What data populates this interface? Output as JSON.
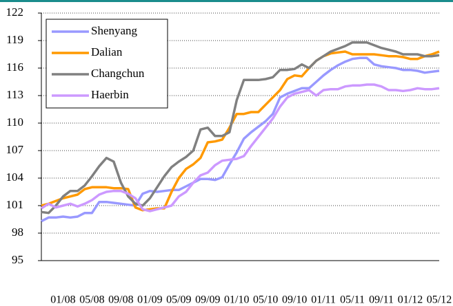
{
  "chart_data": {
    "type": "line",
    "categories": [
      null,
      null,
      null,
      "01/08",
      null,
      null,
      null,
      "05/08",
      null,
      null,
      null,
      "09/08",
      null,
      null,
      null,
      "01/09",
      null,
      null,
      null,
      "05/09",
      null,
      null,
      null,
      "09/09",
      null,
      null,
      null,
      "01/10",
      null,
      null,
      null,
      "05/10",
      null,
      null,
      null,
      "09/10",
      null,
      null,
      null,
      "01/11",
      null,
      null,
      null,
      "05/11",
      null,
      null,
      null,
      "09/11",
      null,
      null,
      null,
      "01/12",
      null,
      null,
      null,
      "05/12"
    ],
    "series": [
      {
        "name": "Shenyang",
        "color": "#9999ff",
        "values": [
          99.3,
          99.7,
          99.7,
          99.8,
          99.7,
          99.8,
          100.2,
          100.2,
          101.4,
          101.4,
          101.3,
          101.2,
          101.1,
          101.0,
          102.3,
          102.6,
          102.5,
          102.6,
          102.7,
          102.7,
          103.1,
          103.5,
          103.9,
          103.9,
          103.8,
          104.1,
          105.5,
          106.8,
          108.3,
          109.0,
          109.6,
          110.2,
          111.0,
          112.8,
          113.2,
          113.5,
          113.8,
          113.8,
          114.5,
          115.2,
          115.8,
          116.3,
          116.7,
          117.0,
          117.1,
          117.1,
          116.4,
          116.2,
          116.1,
          116.0,
          115.8,
          115.8,
          115.7,
          115.5,
          115.6,
          115.7
        ]
      },
      {
        "name": "Dalian",
        "color": "#ff9900",
        "values": [
          101.0,
          101.2,
          101.5,
          101.8,
          102.0,
          102.2,
          102.8,
          103.0,
          103.0,
          103.0,
          102.9,
          102.9,
          102.8,
          100.8,
          100.5,
          100.6,
          100.7,
          100.7,
          102.5,
          104.0,
          105.0,
          105.5,
          106.2,
          107.9,
          108.0,
          108.2,
          109.5,
          111.0,
          111.0,
          111.2,
          111.2,
          112.0,
          112.8,
          113.6,
          114.8,
          115.2,
          115.1,
          116.0,
          116.8,
          117.3,
          117.6,
          117.7,
          117.8,
          117.5,
          117.5,
          117.5,
          117.5,
          117.4,
          117.3,
          117.3,
          117.2,
          117.0,
          117.0,
          117.3,
          117.5,
          117.8
        ]
      },
      {
        "name": "Changchun",
        "color": "#808080",
        "values": [
          100.3,
          100.2,
          101.0,
          102.0,
          102.6,
          102.6,
          103.2,
          104.2,
          105.3,
          106.2,
          105.8,
          103.5,
          102.0,
          101.2,
          101.0,
          101.8,
          103.0,
          104.2,
          105.2,
          105.8,
          106.3,
          107.0,
          109.3,
          109.5,
          108.6,
          108.6,
          109.0,
          112.5,
          114.7,
          114.7,
          114.7,
          114.8,
          115.0,
          115.8,
          115.8,
          115.9,
          116.4,
          116.0,
          116.8,
          117.3,
          117.8,
          118.1,
          118.4,
          118.8,
          118.8,
          118.8,
          118.5,
          118.2,
          118.0,
          117.8,
          117.5,
          117.5,
          117.5,
          117.3,
          117.3,
          117.4
        ]
      },
      {
        "name": "Haerbin",
        "color": "#cc99ff",
        "values": [
          100.7,
          101.2,
          100.8,
          101.0,
          101.2,
          100.9,
          101.2,
          101.6,
          102.2,
          102.5,
          102.6,
          102.6,
          102.3,
          101.8,
          100.6,
          100.4,
          100.6,
          100.8,
          101.0,
          102.0,
          102.5,
          103.5,
          104.3,
          104.6,
          105.4,
          105.9,
          106.0,
          106.1,
          106.4,
          107.5,
          108.5,
          109.5,
          110.5,
          111.8,
          112.8,
          113.2,
          113.4,
          113.6,
          113.0,
          113.6,
          113.7,
          113.7,
          114.0,
          114.1,
          114.1,
          114.2,
          114.2,
          114.0,
          113.6,
          113.6,
          113.5,
          113.6,
          113.8,
          113.7,
          113.7,
          113.8
        ]
      }
    ],
    "ylim": [
      95,
      122
    ],
    "yticks": [
      95,
      98,
      101,
      104,
      107,
      110,
      113,
      116,
      119,
      122
    ],
    "grid": true,
    "legend": "upper left"
  }
}
